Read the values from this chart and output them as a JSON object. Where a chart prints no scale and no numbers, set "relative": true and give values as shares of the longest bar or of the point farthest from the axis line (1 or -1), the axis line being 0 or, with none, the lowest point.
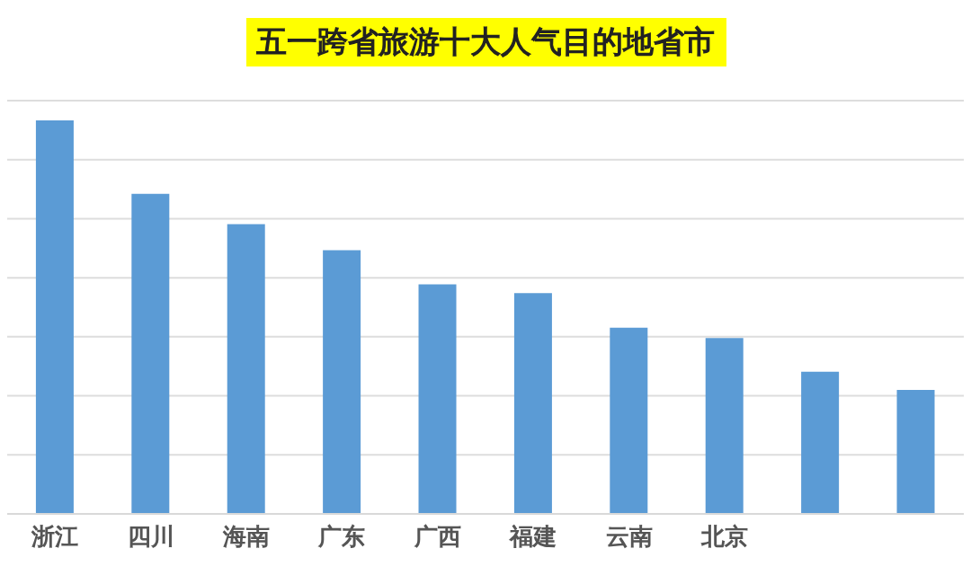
{
  "chart_data": {
    "type": "bar",
    "title": "五一跨省旅游十大人气目的地省市",
    "categories": [
      "浙江",
      "四川",
      "海南",
      "广东",
      "广西",
      "福建",
      "云南",
      "北京",
      null,
      null
    ],
    "values": [
      1,
      0.813,
      0.736,
      0.67,
      0.583,
      0.561,
      0.473,
      0.447,
      0.361,
      0.315
    ],
    "color": "#5b9bd5",
    "relative": true,
    "grid": "y"
  }
}
